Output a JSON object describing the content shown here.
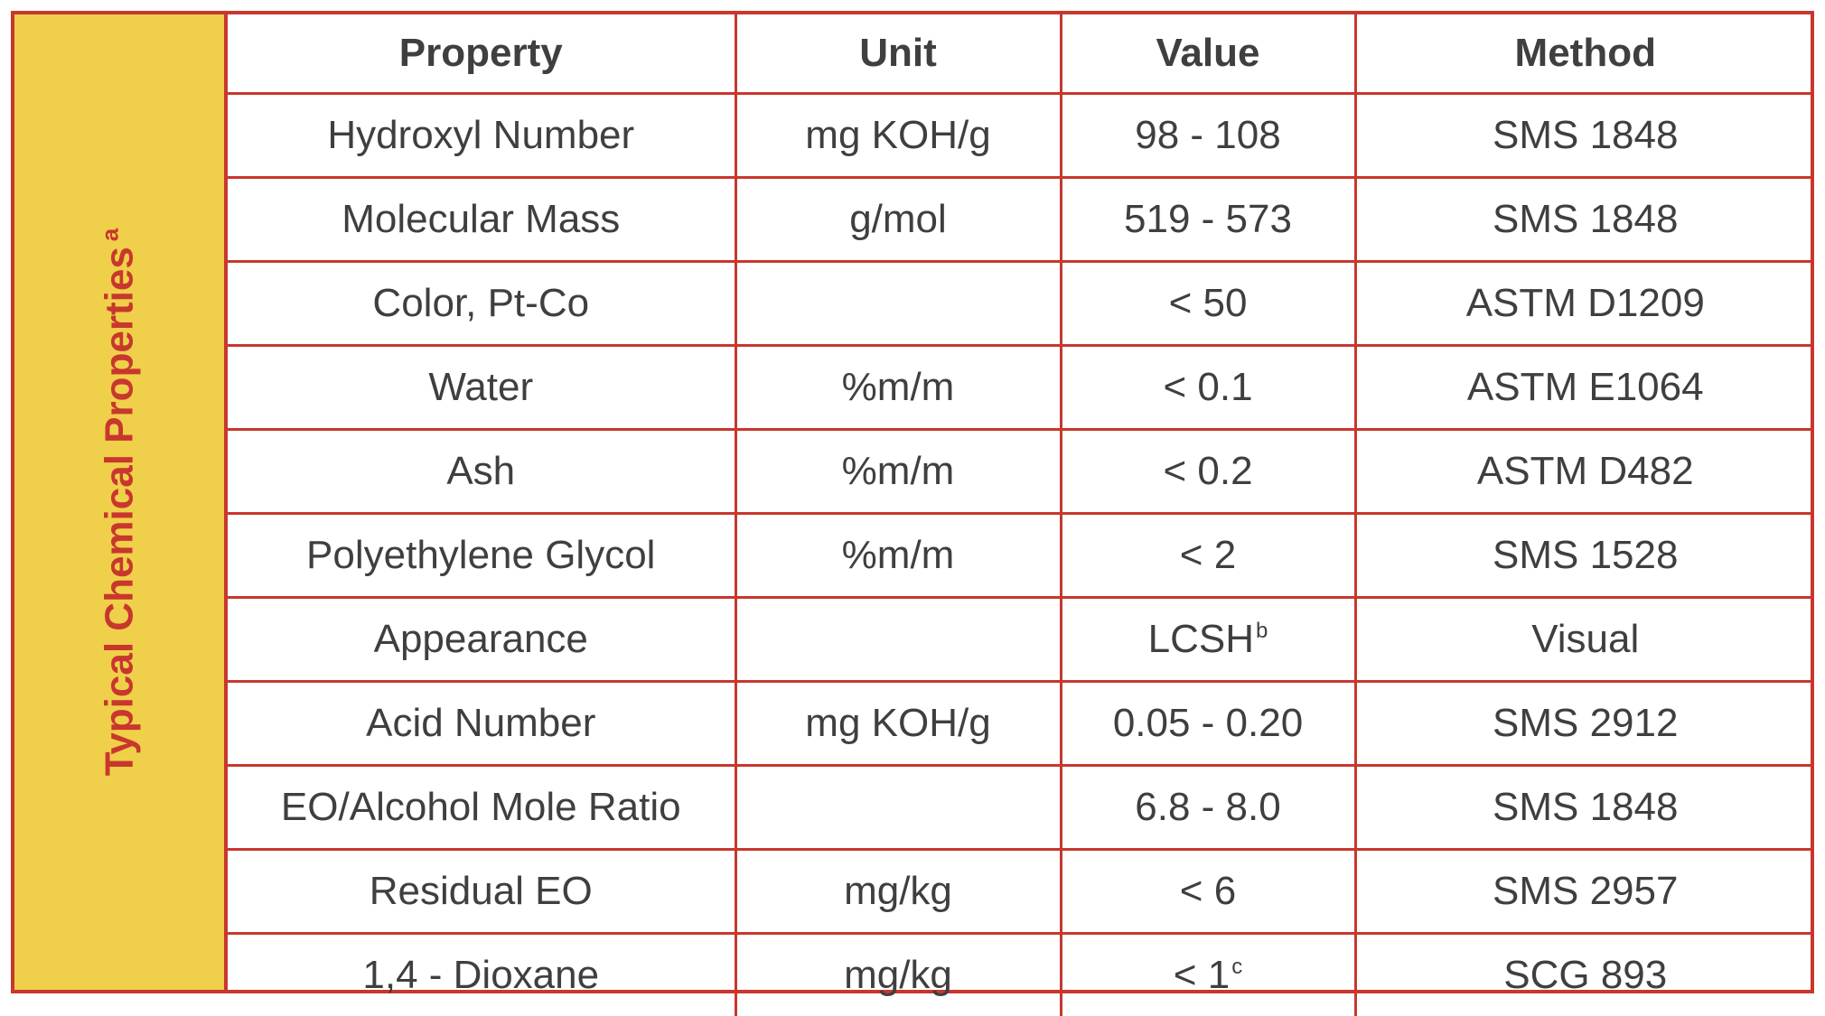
{
  "side_label": {
    "text": "Typical Chemical Properties",
    "superscript": "a"
  },
  "table": {
    "headers": [
      "Property",
      "Unit",
      "Value",
      "Method"
    ],
    "rows": [
      {
        "property": "Hydroxyl Number",
        "unit": "mg KOH/g",
        "value": "98 - 108",
        "value_sup": "",
        "method": "SMS 1848"
      },
      {
        "property": "Molecular Mass",
        "unit": "g/mol",
        "value": "519 - 573",
        "value_sup": "",
        "method": "SMS 1848"
      },
      {
        "property": "Color, Pt-Co",
        "unit": "",
        "value": "< 50",
        "value_sup": "",
        "method": "ASTM D1209"
      },
      {
        "property": "Water",
        "unit": "%m/m",
        "value": "< 0.1",
        "value_sup": "",
        "method": "ASTM E1064"
      },
      {
        "property": "Ash",
        "unit": "%m/m",
        "value": "< 0.2",
        "value_sup": "",
        "method": "ASTM D482"
      },
      {
        "property": "Polyethylene Glycol",
        "unit": "%m/m",
        "value": "< 2",
        "value_sup": "",
        "method": "SMS 1528"
      },
      {
        "property": "Appearance",
        "unit": "",
        "value": "LCSH",
        "value_sup": "b",
        "method": "Visual"
      },
      {
        "property": "Acid Number",
        "unit": "mg KOH/g",
        "value": "0.05 - 0.20",
        "value_sup": "",
        "method": "SMS 2912"
      },
      {
        "property": "EO/Alcohol Mole Ratio",
        "unit": "",
        "value": "6.8 - 8.0",
        "value_sup": "",
        "method": "SMS 1848"
      },
      {
        "property": "Residual EO",
        "unit": "mg/kg",
        "value": "< 6",
        "value_sup": "",
        "method": "SMS 2957"
      },
      {
        "property": "1,4 - Dioxane",
        "unit": "mg/kg",
        "value": "< 1",
        "value_sup": "c",
        "method": "SCG 893"
      }
    ]
  },
  "colors": {
    "accent_red": "#c8372d",
    "band_yellow": "#f0d04a",
    "text_gray": "#3f3f3f"
  }
}
